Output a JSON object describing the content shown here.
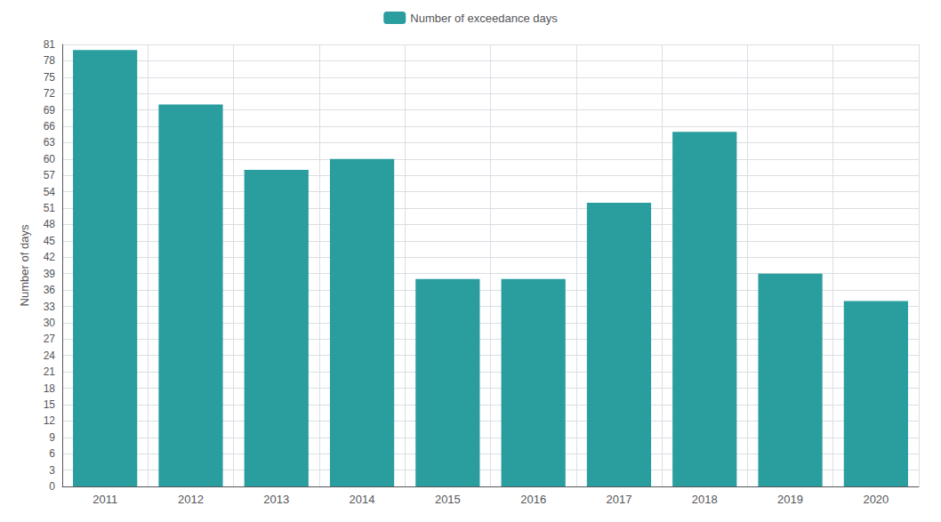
{
  "chart_data": {
    "type": "bar",
    "categories": [
      "2011",
      "2012",
      "2013",
      "2014",
      "2015",
      "2016",
      "2017",
      "2018",
      "2019",
      "2020"
    ],
    "series": [
      {
        "name": "Number of exceedance days",
        "color": "#2a9d9f",
        "values": [
          80,
          70,
          58,
          60,
          38,
          38,
          52,
          65,
          39,
          34
        ]
      }
    ],
    "ylabel": "Number of days",
    "ylim": [
      0,
      81
    ],
    "yticks": [
      0,
      3,
      6,
      9,
      12,
      15,
      18,
      21,
      24,
      27,
      30,
      33,
      36,
      39,
      42,
      45,
      48,
      51,
      54,
      57,
      60,
      63,
      66,
      69,
      72,
      75,
      78,
      81
    ],
    "grid": true,
    "legend": "upper center"
  }
}
